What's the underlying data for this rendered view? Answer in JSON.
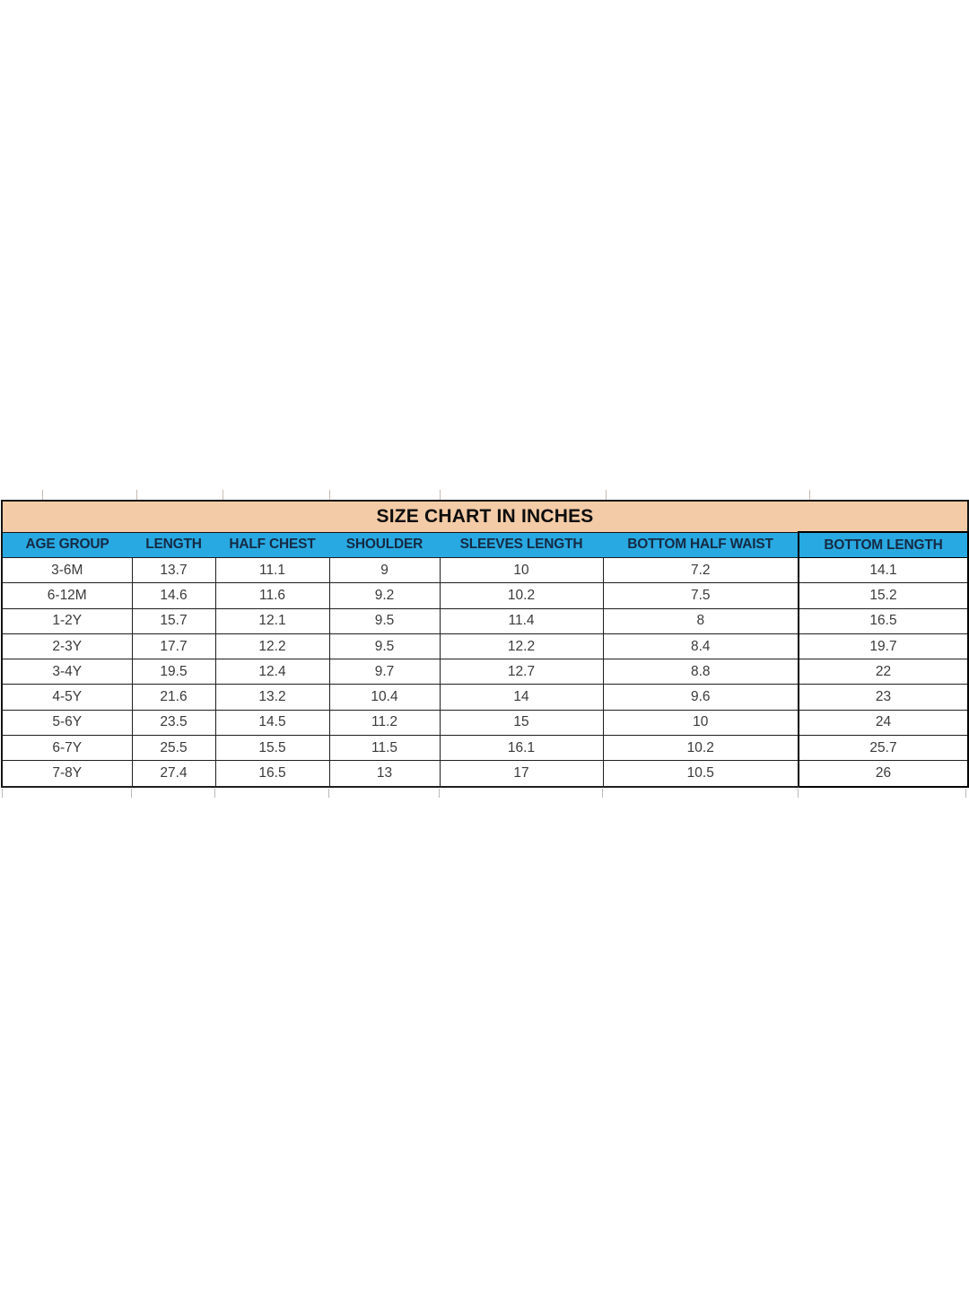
{
  "page": {
    "background_color": "#ffffff"
  },
  "chart_data": {
    "type": "table",
    "title": "SIZE CHART IN INCHES",
    "columns": [
      "AGE GROUP",
      "LENGTH",
      "HALF CHEST",
      "SHOULDER",
      "SLEEVES LENGTH",
      "BOTTOM HALF WAIST",
      "BOTTOM LENGTH"
    ],
    "rows": [
      [
        "3-6M",
        "13.7",
        "11.1",
        "9",
        "10",
        "7.2",
        "14.1"
      ],
      [
        "6-12M",
        "14.6",
        "11.6",
        "9.2",
        "10.2",
        "7.5",
        "15.2"
      ],
      [
        "1-2Y",
        "15.7",
        "12.1",
        "9.5",
        "11.4",
        "8",
        "16.5"
      ],
      [
        "2-3Y",
        "17.7",
        "12.2",
        "9.5",
        "12.2",
        "8.4",
        "19.7"
      ],
      [
        "3-4Y",
        "19.5",
        "12.4",
        "9.7",
        "12.7",
        "8.8",
        "22"
      ],
      [
        "4-5Y",
        "21.6",
        "13.2",
        "10.4",
        "14",
        "9.6",
        "23"
      ],
      [
        "5-6Y",
        "23.5",
        "14.5",
        "11.2",
        "15",
        "10",
        "24"
      ],
      [
        "6-7Y",
        "25.5",
        "15.5",
        "11.5",
        "16.1",
        "10.2",
        "25.7"
      ],
      [
        "7-8Y",
        "27.4",
        "16.5",
        "13",
        "17",
        "10.5",
        "26"
      ]
    ],
    "highlighted_column": "BOTTOM LENGTH",
    "colors": {
      "title_bg": "#F3CBA6",
      "header_bg": "#29A9E1",
      "header_text": "#152A44",
      "body_text": "#3A3A3A",
      "border": "#1F1F1F",
      "highlight_border": "#000000"
    },
    "layout": {
      "grid": true,
      "legend": false
    }
  }
}
